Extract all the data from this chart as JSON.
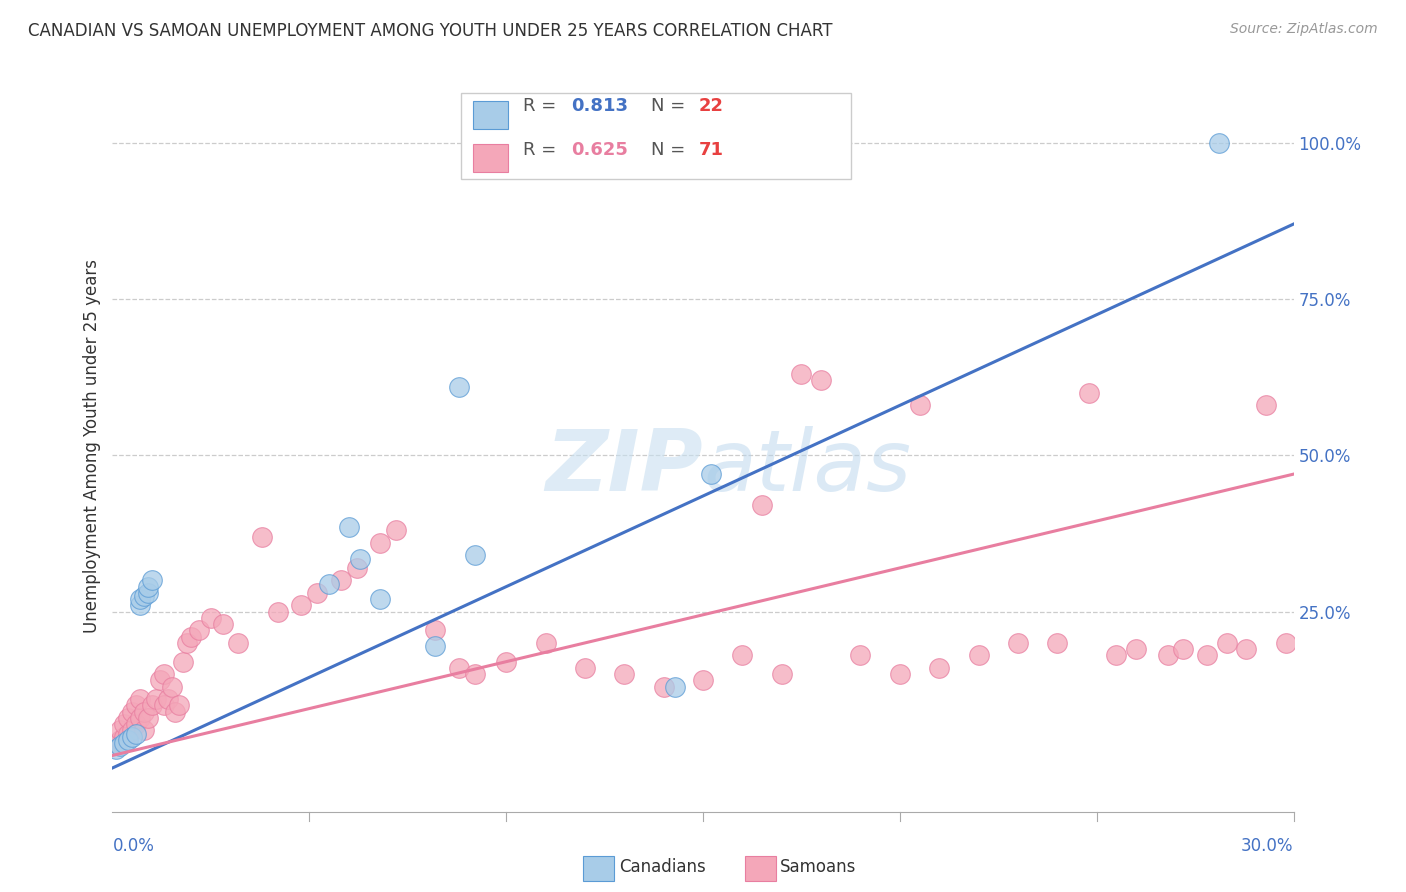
{
  "title": "CANADIAN VS SAMOAN UNEMPLOYMENT AMONG YOUTH UNDER 25 YEARS CORRELATION CHART",
  "source": "Source: ZipAtlas.com",
  "ylabel": "Unemployment Among Youth under 25 years",
  "ytick_labels": [
    "100.0%",
    "75.0%",
    "50.0%",
    "25.0%"
  ],
  "ytick_values": [
    1.0,
    0.75,
    0.5,
    0.25
  ],
  "xlim": [
    0.0,
    0.3
  ],
  "ylim": [
    -0.07,
    1.1
  ],
  "legend_canadian_R": "0.813",
  "legend_canadian_N": "22",
  "legend_samoan_R": "0.625",
  "legend_samoan_N": "71",
  "canadian_fill": "#a8cce8",
  "canadian_edge": "#5b9bd5",
  "samoan_fill": "#f4a7b9",
  "samoan_edge": "#e87ea0",
  "canadian_line": "#4472c4",
  "samoan_line": "#e87ea0",
  "tick_color": "#4472c4",
  "watermark": "ZIPatlas",
  "background_color": "#ffffff",
  "can_x": [
    0.001,
    0.002,
    0.003,
    0.004,
    0.005,
    0.006,
    0.007,
    0.007,
    0.008,
    0.009,
    0.009,
    0.01,
    0.055,
    0.06,
    0.063,
    0.068,
    0.082,
    0.088,
    0.092,
    0.143,
    0.152,
    0.281
  ],
  "can_y": [
    0.03,
    0.035,
    0.04,
    0.045,
    0.05,
    0.055,
    0.26,
    0.27,
    0.275,
    0.28,
    0.29,
    0.3,
    0.295,
    0.385,
    0.335,
    0.27,
    0.195,
    0.61,
    0.34,
    0.13,
    0.47,
    1.0
  ],
  "sam_x": [
    0.001,
    0.002,
    0.002,
    0.003,
    0.003,
    0.004,
    0.004,
    0.005,
    0.005,
    0.006,
    0.006,
    0.007,
    0.007,
    0.008,
    0.008,
    0.009,
    0.01,
    0.011,
    0.012,
    0.013,
    0.013,
    0.014,
    0.015,
    0.016,
    0.017,
    0.018,
    0.019,
    0.02,
    0.022,
    0.025,
    0.028,
    0.032,
    0.038,
    0.042,
    0.048,
    0.052,
    0.058,
    0.062,
    0.068,
    0.072,
    0.082,
    0.088,
    0.092,
    0.1,
    0.11,
    0.12,
    0.13,
    0.14,
    0.15,
    0.16,
    0.165,
    0.17,
    0.175,
    0.18,
    0.19,
    0.2,
    0.205,
    0.21,
    0.22,
    0.23,
    0.24,
    0.248,
    0.255,
    0.26,
    0.268,
    0.272,
    0.278,
    0.283,
    0.288,
    0.293,
    0.298
  ],
  "sam_y": [
    0.04,
    0.045,
    0.06,
    0.05,
    0.07,
    0.055,
    0.08,
    0.06,
    0.09,
    0.07,
    0.1,
    0.08,
    0.11,
    0.06,
    0.09,
    0.08,
    0.1,
    0.11,
    0.14,
    0.15,
    0.1,
    0.11,
    0.13,
    0.09,
    0.1,
    0.17,
    0.2,
    0.21,
    0.22,
    0.24,
    0.23,
    0.2,
    0.37,
    0.25,
    0.26,
    0.28,
    0.3,
    0.32,
    0.36,
    0.38,
    0.22,
    0.16,
    0.15,
    0.17,
    0.2,
    0.16,
    0.15,
    0.13,
    0.14,
    0.18,
    0.42,
    0.15,
    0.63,
    0.62,
    0.18,
    0.15,
    0.58,
    0.16,
    0.18,
    0.2,
    0.2,
    0.6,
    0.18,
    0.19,
    0.18,
    0.19,
    0.18,
    0.2,
    0.19,
    0.58,
    0.2
  ]
}
